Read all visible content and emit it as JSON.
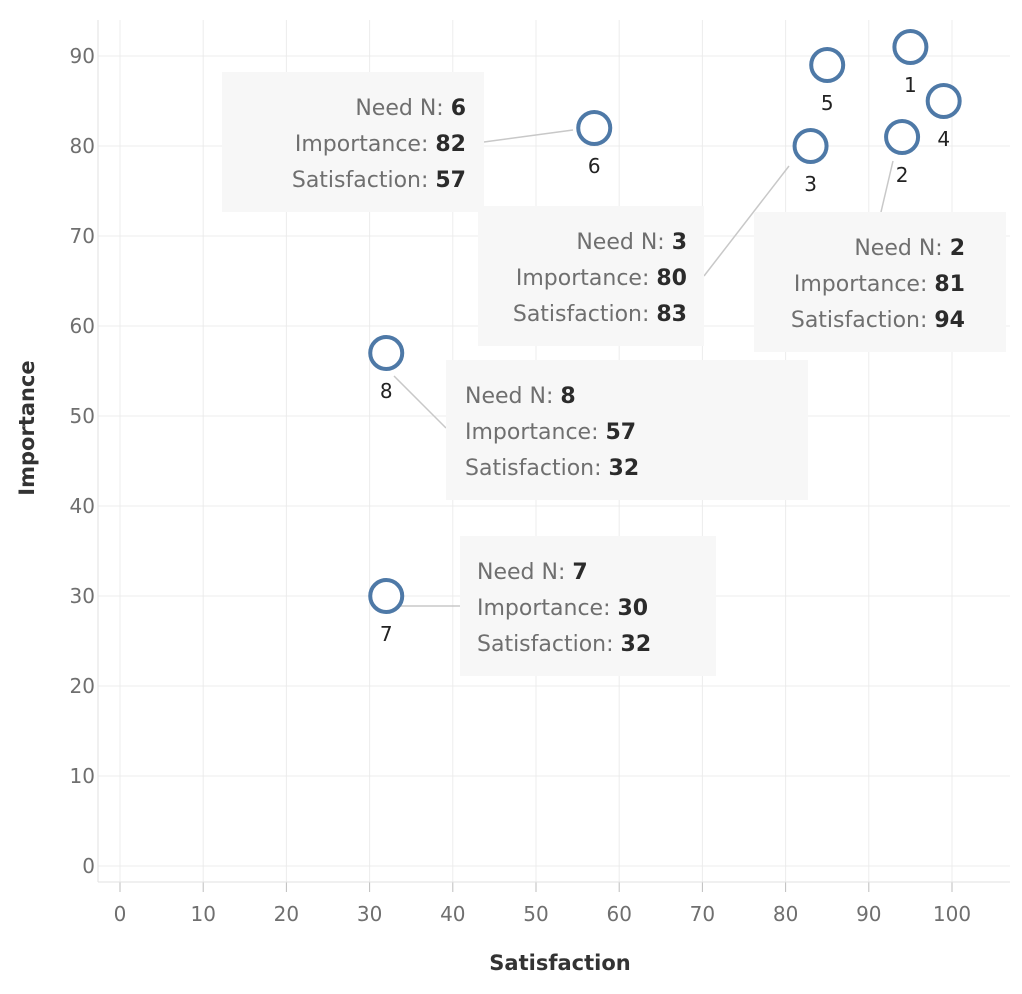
{
  "chart_data": {
    "type": "scatter",
    "xlabel": "Satisfaction",
    "ylabel": "Importance",
    "xlim": [
      0,
      100
    ],
    "ylim": [
      0,
      90
    ],
    "x_ticks": [
      0,
      10,
      20,
      30,
      40,
      50,
      60,
      70,
      80,
      90,
      100
    ],
    "y_ticks": [
      0,
      10,
      20,
      30,
      40,
      50,
      60,
      70,
      80,
      90
    ],
    "grid": true,
    "marker": "hollow-circle",
    "marker_color": "#4e79a7",
    "points": [
      {
        "label": "1",
        "x": 95,
        "y": 91
      },
      {
        "label": "2",
        "x": 94,
        "y": 81
      },
      {
        "label": "3",
        "x": 83,
        "y": 80
      },
      {
        "label": "4",
        "x": 99,
        "y": 85
      },
      {
        "label": "5",
        "x": 85,
        "y": 89
      },
      {
        "label": "6",
        "x": 57,
        "y": 82
      },
      {
        "label": "7",
        "x": 32,
        "y": 30
      },
      {
        "label": "8",
        "x": 32,
        "y": 57
      }
    ],
    "annotations": [
      {
        "point": "6",
        "need_key": "Need N:",
        "need": "6",
        "importance_key": "Importance:",
        "importance": "82",
        "satisfaction_key": "Satisfaction:",
        "satisfaction": "57"
      },
      {
        "point": "3",
        "need_key": "Need N:",
        "need": "3",
        "importance_key": "Importance:",
        "importance": "80",
        "satisfaction_key": "Satisfaction:",
        "satisfaction": "83"
      },
      {
        "point": "2",
        "need_key": "Need N:",
        "need": "2",
        "importance_key": "Importance:",
        "importance": "81",
        "satisfaction_key": "Satisfaction:",
        "satisfaction": "94"
      },
      {
        "point": "8",
        "need_key": "Need N:",
        "need": "8",
        "importance_key": "Importance:",
        "importance": "57",
        "satisfaction_key": "Satisfaction:",
        "satisfaction": "32"
      },
      {
        "point": "7",
        "need_key": "Need N:",
        "need": "7",
        "importance_key": "Importance:",
        "importance": "30",
        "satisfaction_key": "Satisfaction:",
        "satisfaction": "32"
      }
    ]
  }
}
